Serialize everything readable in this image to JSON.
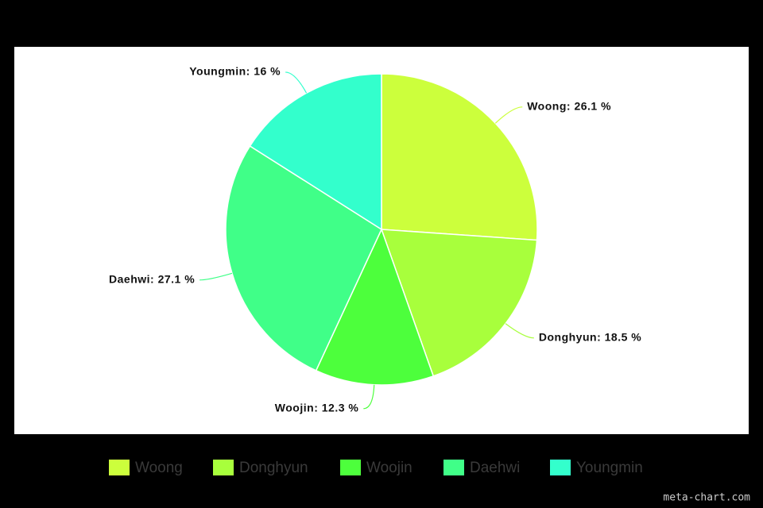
{
  "chart_data": {
    "type": "pie",
    "categories": [
      "Woong",
      "Donghyun",
      "Woojin",
      "Daehwi",
      "Youngmin"
    ],
    "values": [
      26.1,
      18.5,
      12.3,
      27.1,
      16
    ],
    "value_labels": [
      "Woong: 26.1 %",
      "Donghyun: 18.5 %",
      "Woojin: 12.3 %",
      "Daehwi: 27.1 %",
      "Youngmin: 16 %"
    ],
    "colors": [
      "#ccff3c",
      "#a8ff3c",
      "#4dff3c",
      "#40ff88",
      "#33ffcc"
    ],
    "legend": "bottom",
    "watermark": "meta-chart.com"
  }
}
